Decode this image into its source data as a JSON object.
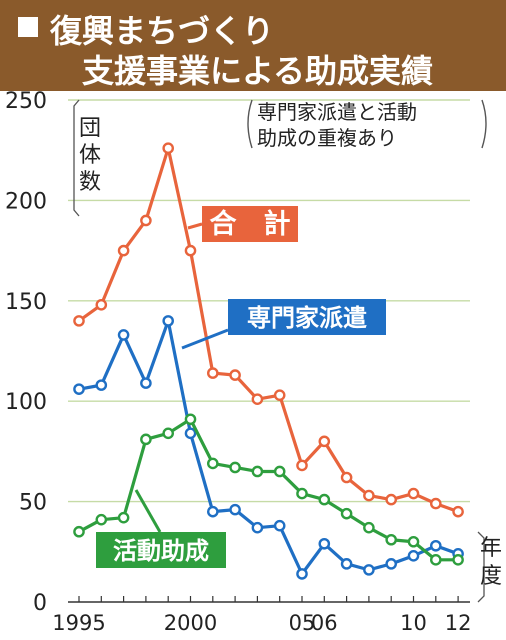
{
  "header": {
    "title_line1": "復興まちづくり",
    "title_line2": "支援事業による助成実績"
  },
  "chart_data": {
    "type": "line",
    "title": "復興まちづくり支援事業による助成実績",
    "ylabel": "団体数",
    "xlabel": "年度",
    "note_line1": "専門家派遣と活動",
    "note_line2": "助成の重複あり",
    "ylim": [
      0,
      250
    ],
    "y_ticks": [
      0,
      50,
      100,
      150,
      200,
      250
    ],
    "x": [
      1995,
      1996,
      1997,
      1998,
      1999,
      2000,
      2001,
      2002,
      2003,
      2004,
      2005,
      2006,
      2007,
      2008,
      2009,
      2010,
      2011,
      2012
    ],
    "x_tick_labels": [
      {
        "x": 1995,
        "label": "1995"
      },
      {
        "x": 2000,
        "label": "2000"
      },
      {
        "x": 2005,
        "label": "05"
      },
      {
        "x": 2006,
        "label": "06"
      },
      {
        "x": 2010,
        "label": "10"
      },
      {
        "x": 2012,
        "label": "12"
      }
    ],
    "series": [
      {
        "name": "合　計",
        "color": "#e8643c",
        "values": [
          140,
          148,
          175,
          190,
          226,
          175,
          114,
          113,
          101,
          103,
          68,
          80,
          62,
          53,
          51,
          54,
          49,
          45
        ]
      },
      {
        "name": "専門家派遣",
        "color": "#1f6fc4",
        "values": [
          106,
          108,
          133,
          109,
          140,
          84,
          45,
          46,
          37,
          38,
          14,
          29,
          19,
          16,
          19,
          23,
          28,
          24
        ]
      },
      {
        "name": "活動助成",
        "color": "#2e9e3e",
        "values": [
          35,
          41,
          42,
          81,
          84,
          91,
          69,
          67,
          65,
          65,
          54,
          51,
          44,
          37,
          31,
          30,
          21,
          21
        ]
      }
    ],
    "grid": true
  }
}
